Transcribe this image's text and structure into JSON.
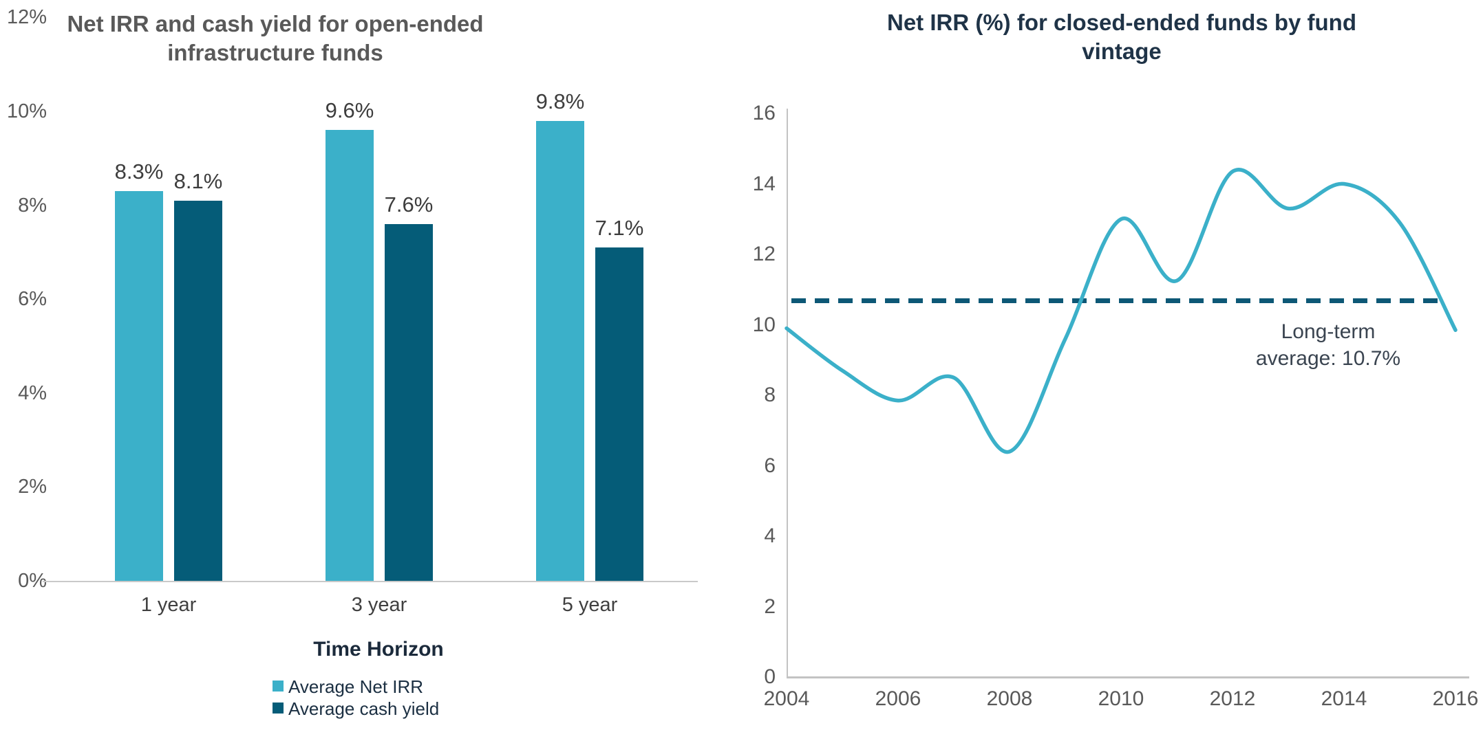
{
  "page": {
    "background": "#ffffff"
  },
  "colors": {
    "net_irr_teal": "#3bb0c9",
    "cash_yield_dark_teal": "#055c78",
    "average_line_navy": "#0d5876",
    "left_title_gray": "#595959",
    "right_title_navy": "#1f3347",
    "tick_label_gray": "#595959",
    "value_label_charcoal": "#3d3d3d",
    "axis_line_gray": "#c9c9c9"
  },
  "chart_data": [
    {
      "type": "bar",
      "title": "Net IRR and cash yield for open-ended infrastructure funds",
      "title_lines": [
        "Net IRR and cash yield for open-ended",
        "infrastructure funds"
      ],
      "categories": [
        "1 year",
        "3 year",
        "5 year"
      ],
      "series": [
        {
          "name": "Average Net IRR",
          "color": "#3bb0c9",
          "values": [
            8.3,
            9.6,
            9.8
          ],
          "labels": [
            "8.3%",
            "9.6%",
            "9.8%"
          ]
        },
        {
          "name": "Average cash yield",
          "color": "#055c78",
          "values": [
            8.1,
            7.6,
            7.1
          ],
          "labels": [
            "8.1%",
            "7.6%",
            "7.1%"
          ]
        }
      ],
      "xlabel": "Time Horizon",
      "ylabel": "",
      "ylim": [
        0,
        12
      ],
      "ytick_step": 2,
      "yticks": [
        "0%",
        "2%",
        "4%",
        "6%",
        "8%",
        "10%",
        "12%"
      ],
      "grid": false,
      "legend_position": "bottom"
    },
    {
      "type": "line",
      "title": "Net IRR (%) for closed-ended funds by fund vintage",
      "title_lines": [
        "Net IRR (%) for closed-ended funds by fund",
        "vintage"
      ],
      "x": [
        2004,
        2005,
        2006,
        2007,
        2008,
        2009,
        2010,
        2011,
        2012,
        2013,
        2014,
        2015,
        2016
      ],
      "y": [
        9.9,
        8.7,
        7.85,
        8.5,
        6.4,
        9.6,
        13.0,
        11.25,
        14.35,
        13.3,
        14.0,
        12.9,
        9.85
      ],
      "line_color": "#3bb0c9",
      "xlim": [
        2004,
        2016
      ],
      "ylim": [
        0,
        16
      ],
      "ytick_step": 2,
      "yticks": [
        "0",
        "2",
        "4",
        "6",
        "8",
        "10",
        "12",
        "14",
        "16"
      ],
      "xticks": [
        "2004",
        "2006",
        "2008",
        "2010",
        "2012",
        "2014",
        "2016"
      ],
      "grid": false,
      "average_line": {
        "value": 10.7,
        "style": "dashed",
        "color": "#0d5876",
        "annotation": "Long-term average: 10.7%",
        "annotation_lines": [
          "Long-term",
          "average: 10.7%"
        ]
      }
    }
  ]
}
